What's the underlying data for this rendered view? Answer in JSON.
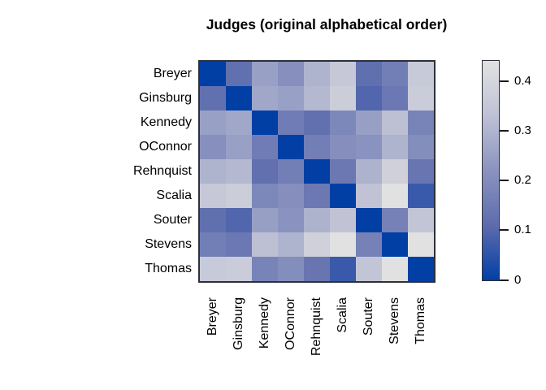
{
  "title": "Judges (original alphabetical order)",
  "chart_data": {
    "type": "heatmap",
    "title": "Judges (original alphabetical order)",
    "row_labels": [
      "Breyer",
      "Ginsburg",
      "Kennedy",
      "OConnor",
      "Rehnquist",
      "Scalia",
      "Souter",
      "Stevens",
      "Thomas"
    ],
    "col_labels": [
      "Breyer",
      "Ginsburg",
      "Kennedy",
      "OConnor",
      "Rehnquist",
      "Scalia",
      "Souter",
      "Stevens",
      "Thomas"
    ],
    "matrix": [
      [
        0.0,
        0.12,
        0.25,
        0.209,
        0.299,
        0.353,
        0.118,
        0.162,
        0.359
      ],
      [
        0.12,
        0.0,
        0.267,
        0.252,
        0.308,
        0.37,
        0.096,
        0.145,
        0.368
      ],
      [
        0.25,
        0.267,
        0.0,
        0.156,
        0.122,
        0.188,
        0.248,
        0.327,
        0.177
      ],
      [
        0.209,
        0.252,
        0.156,
        0.0,
        0.162,
        0.207,
        0.22,
        0.297,
        0.205
      ],
      [
        0.299,
        0.308,
        0.122,
        0.162,
        0.0,
        0.143,
        0.293,
        0.381,
        0.136
      ],
      [
        0.353,
        0.37,
        0.188,
        0.207,
        0.143,
        0.0,
        0.338,
        0.438,
        0.066
      ],
      [
        0.118,
        0.096,
        0.248,
        0.22,
        0.293,
        0.338,
        0.0,
        0.169,
        0.342
      ],
      [
        0.162,
        0.145,
        0.327,
        0.297,
        0.381,
        0.438,
        0.169,
        0.0,
        0.436
      ],
      [
        0.359,
        0.368,
        0.177,
        0.205,
        0.136,
        0.066,
        0.342,
        0.436,
        0.0
      ]
    ],
    "value_range": [
      0,
      0.44
    ],
    "grid": false,
    "palette": {
      "low_value_color": "#023FA5",
      "high_value_color": "#E2E2E2",
      "anchors": [
        "#023FA5",
        "#5D6CAD",
        "#8A93BF",
        "#BEC1D4",
        "#E2E2E2"
      ]
    },
    "colorbar": {
      "position": "right",
      "ticks": [
        {
          "value": 0.0,
          "label": "0"
        },
        {
          "value": 0.1,
          "label": "0.1"
        },
        {
          "value": 0.2,
          "label": "0.2"
        },
        {
          "value": 0.3,
          "label": "0.3"
        },
        {
          "value": 0.4,
          "label": "0.4"
        }
      ]
    }
  }
}
